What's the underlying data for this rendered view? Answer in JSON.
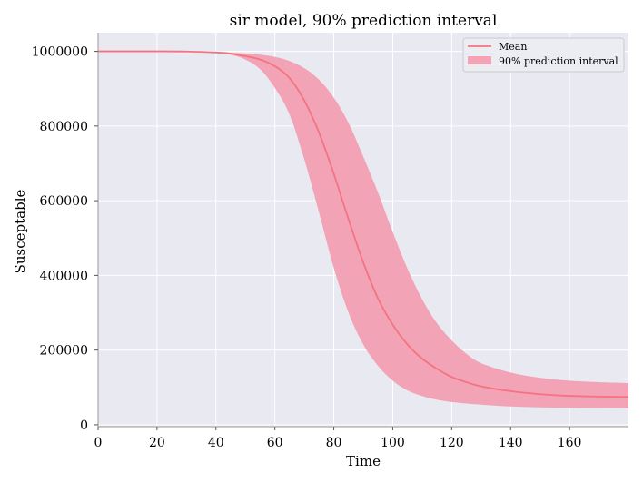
{
  "chart_data": {
    "type": "line",
    "title": "sir model, 90% prediction interval",
    "xlabel": "Time",
    "ylabel": "Susceptable",
    "xlim": [
      0,
      180
    ],
    "ylim": [
      -5000,
      1050000
    ],
    "grid": true,
    "legend_position": "top-right",
    "xticks": [
      "0",
      "20",
      "40",
      "60",
      "80",
      "100",
      "120",
      "140",
      "160"
    ],
    "yticks": [
      "0",
      "200000",
      "400000",
      "600000",
      "800000",
      "1000000"
    ],
    "x": [
      0,
      10,
      20,
      30,
      40,
      45,
      50,
      55,
      60,
      65,
      70,
      75,
      80,
      85,
      90,
      95,
      100,
      105,
      110,
      115,
      120,
      125,
      130,
      140,
      150,
      160,
      170,
      180
    ],
    "series": [
      {
        "name": "Mean",
        "color": "#f47380",
        "values": [
          1000000,
          1000000,
          1000000,
          999500,
          997000,
          994000,
          987000,
          978000,
          960000,
          928000,
          868000,
          782000,
          672000,
          550000,
          435000,
          338000,
          268000,
          215000,
          177000,
          150000,
          128000,
          114000,
          103000,
          90000,
          82000,
          77500,
          75500,
          74500
        ]
      }
    ],
    "band": {
      "name": "90% prediction interval",
      "color": "#f2a3b6",
      "lower": [
        1000000,
        1000000,
        999500,
        998500,
        995500,
        991000,
        978000,
        952000,
        902000,
        830000,
        710000,
        568000,
        420000,
        300000,
        215000,
        158000,
        118000,
        92000,
        77000,
        67000,
        61000,
        57000,
        54000,
        49000,
        46500,
        45000,
        44500,
        44000
      ],
      "upper": [
        1000000,
        1000000,
        1000000,
        1000000,
        998500,
        996500,
        994500,
        991000,
        985000,
        974000,
        955000,
        924000,
        876000,
        808000,
        718000,
        622000,
        516000,
        418000,
        336000,
        272000,
        226000,
        190000,
        165000,
        140000,
        126000,
        118000,
        114000,
        111500
      ]
    },
    "colors": {
      "plot_background": "#e9e9f1",
      "grid": "#ffffff",
      "spine": "#999999",
      "mean_line": "#f47380",
      "band_fill": "#f2a3b6"
    }
  }
}
